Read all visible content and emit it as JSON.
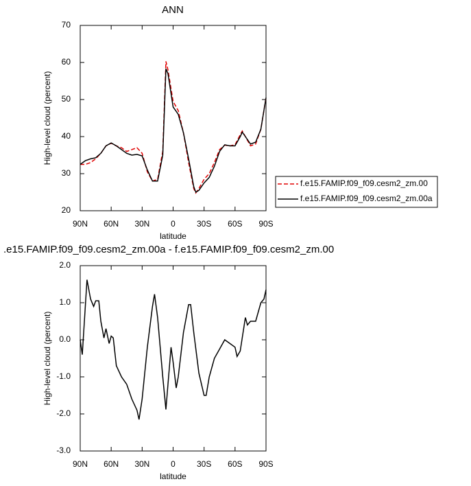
{
  "chart_data": [
    {
      "type": "line",
      "title": "ANN",
      "xlabel": "latitude",
      "ylabel": "High-level cloud (percent)",
      "x": [
        90,
        85,
        80,
        75,
        70,
        65,
        60,
        55,
        50,
        45,
        40,
        35,
        30,
        25,
        20,
        15,
        10,
        7,
        5,
        0,
        -5,
        -10,
        -15,
        -20,
        -22,
        -25,
        -30,
        -35,
        -40,
        -45,
        -50,
        -55,
        -60,
        -65,
        -67,
        -70,
        -75,
        -80,
        -85,
        -90
      ],
      "series": [
        {
          "name": "f.e15.FAMIP.f09_f09.cesm2_zm.00",
          "color": "#e00000",
          "line_style": "dashed",
          "values": [
            32.5,
            32.5,
            33,
            34,
            35.5,
            37.5,
            38.2,
            37.5,
            37,
            36,
            36.5,
            37,
            35.5,
            30.5,
            28,
            28.5,
            36,
            60.3,
            58,
            49.5,
            47,
            41,
            33,
            26,
            24.8,
            26,
            28.5,
            30,
            33,
            36.5,
            37.7,
            37.5,
            37.8,
            40.5,
            41.5,
            40,
            37.5,
            38,
            42,
            50.5
          ]
        },
        {
          "name": "f.e15.FAMIP.f09_f09.cesm2_zm.00a",
          "color": "#000000",
          "line_style": "solid",
          "values": [
            32.5,
            33.5,
            34,
            34.3,
            35.5,
            37.5,
            38.3,
            37.5,
            36.5,
            35.5,
            35,
            35.2,
            34.8,
            31,
            28,
            28,
            35,
            58.3,
            57,
            48,
            46,
            41,
            34,
            26.5,
            25,
            25.5,
            27.5,
            29,
            32,
            36,
            37.8,
            37.5,
            37.5,
            40,
            41.2,
            40,
            38,
            38.5,
            42,
            50.5
          ]
        }
      ],
      "xlim": [
        90,
        -90
      ],
      "xticks": [
        {
          "value": 90,
          "label": "90N"
        },
        {
          "value": 60,
          "label": "60N"
        },
        {
          "value": 30,
          "label": "30N"
        },
        0,
        {
          "value": -30,
          "label": "30S"
        },
        {
          "value": -60,
          "label": "60S"
        },
        {
          "value": -90,
          "label": "90S"
        }
      ],
      "ylim": [
        20,
        70
      ],
      "yticks": [
        20,
        30,
        40,
        50,
        60,
        70
      ],
      "legend": "right"
    },
    {
      "type": "line",
      "title": ".e15.FAMIP.f09_f09.cesm2_zm.00a - f.e15.FAMIP.f09_f09.cesm2_zm.00",
      "xlabel": "latitude",
      "ylabel": "High-level cloud (percent)",
      "x": [
        90,
        88,
        83.4,
        80,
        77,
        75,
        72,
        70,
        67,
        65,
        62,
        60,
        58,
        55,
        50,
        45,
        40,
        35,
        33,
        30,
        25,
        20,
        18,
        15,
        10,
        7,
        5,
        2,
        0,
        -3,
        -5,
        -10,
        -15,
        -17,
        -20,
        -25,
        -30,
        -32,
        -35,
        -40,
        -45,
        -50,
        -55,
        -60,
        -62,
        -65,
        -70,
        -72,
        -75,
        -80,
        -85,
        -88,
        -90
      ],
      "values": [
        0,
        -0.4,
        1.62,
        1.1,
        0.9,
        1.05,
        1.05,
        0.5,
        0.05,
        0.3,
        -0.1,
        0.1,
        0.05,
        -0.7,
        -1.0,
        -1.2,
        -1.6,
        -1.9,
        -2.15,
        -1.6,
        -0.2,
        0.9,
        1.23,
        0.6,
        -1.0,
        -1.88,
        -1.2,
        -0.2,
        -0.6,
        -1.3,
        -1.0,
        0.2,
        0.95,
        0.95,
        0.2,
        -0.9,
        -1.5,
        -1.5,
        -1.0,
        -0.5,
        -0.25,
        0.0,
        -0.1,
        -0.2,
        -0.45,
        -0.3,
        0.6,
        0.4,
        0.5,
        0.5,
        1.0,
        1.1,
        1.35
      ],
      "color": "#000000",
      "line_style": "solid",
      "xlim": [
        90,
        -90
      ],
      "xticks": [
        {
          "value": 90,
          "label": "90N"
        },
        {
          "value": 60,
          "label": "60N"
        },
        {
          "value": 30,
          "label": "30N"
        },
        0,
        {
          "value": -30,
          "label": "30S"
        },
        {
          "value": -60,
          "label": "60S"
        },
        {
          "value": -90,
          "label": "90S"
        }
      ],
      "ylim": [
        -3,
        2
      ],
      "yticks": [
        {
          "value": -3,
          "label": "-3.0"
        },
        {
          "value": -2,
          "label": "-2.0"
        },
        {
          "value": -1,
          "label": "-1.0"
        },
        {
          "value": 0,
          "label": "0.0"
        },
        {
          "value": 1,
          "label": "1.0"
        },
        {
          "value": 2,
          "label": "2.0"
        }
      ]
    }
  ]
}
